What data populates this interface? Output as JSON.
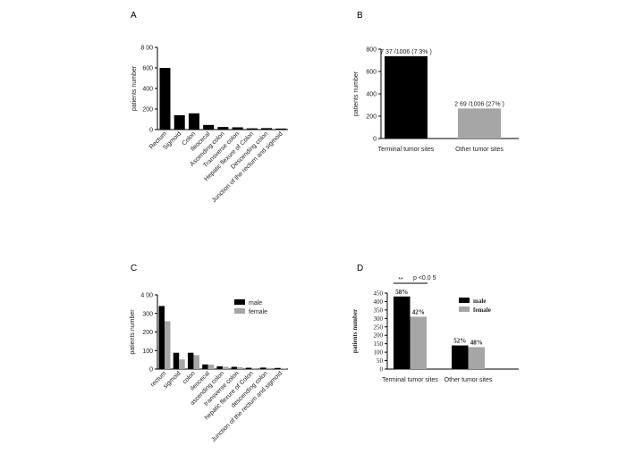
{
  "chart_data": [
    {
      "panel": "A",
      "type": "bar",
      "ylabel": "patients number",
      "ylim": [
        0,
        800
      ],
      "yticks": [
        0,
        200,
        400,
        600,
        800
      ],
      "ytick_labels": [
        "0",
        "200",
        "400",
        "600",
        "8 00"
      ],
      "categories": [
        "Rectum",
        "Sigmoid",
        "Colon",
        "Ileocecal",
        "Ascending colon",
        "Transverse colon",
        "Hepatic flexure of Colon",
        "Descending colon",
        "Junction of the rectum and sigmoid"
      ],
      "values": [
        600,
        140,
        158,
        45,
        25,
        22,
        12,
        14,
        10
      ],
      "colors": [
        "#000000"
      ]
    },
    {
      "panel": "B",
      "type": "bar",
      "ylabel": "patients number",
      "ylim": [
        0,
        800
      ],
      "yticks": [
        0,
        200,
        400,
        600,
        800
      ],
      "categories": [
        "Terminal tumor sites",
        "Other tumor sites"
      ],
      "values": [
        737,
        269
      ],
      "data_labels": [
        "7 37 /1006  (7 3% )",
        "2 69 /1006  (27% )"
      ],
      "colors": [
        "#000000",
        "#a6a6a6"
      ]
    },
    {
      "panel": "C",
      "type": "bar",
      "ylabel": "patients number",
      "ylim": [
        0,
        400
      ],
      "yticks": [
        0,
        100,
        200,
        300,
        400
      ],
      "ytick_labels": [
        "0",
        "100",
        "200",
        "300",
        "4 00"
      ],
      "categories": [
        "rectum",
        "sigmoid",
        "colon",
        "ileocecal",
        "ascending colon",
        "transverse colon",
        "hepatic flexure of Colon",
        "descending colon",
        "Junction of the rectum and sigmoid"
      ],
      "series": [
        {
          "name": "male",
          "values": [
            340,
            88,
            88,
            25,
            15,
            12,
            7,
            8,
            6
          ],
          "color": "#000000"
        },
        {
          "name": "female",
          "values": [
            258,
            52,
            75,
            24,
            12,
            10,
            5,
            6,
            4
          ],
          "color": "#a6a6a6"
        }
      ],
      "legend": "top-right"
    },
    {
      "panel": "D",
      "type": "bar",
      "ylabel": "patients number",
      "ylim": [
        0,
        450
      ],
      "yticks": [
        0,
        50,
        100,
        150,
        200,
        250,
        300,
        350,
        400,
        450
      ],
      "categories": [
        "Terminal tumor sites",
        "Other tumor sites"
      ],
      "series": [
        {
          "name": "male",
          "values": [
            430,
            140
          ],
          "labels": [
            "58%",
            "52%"
          ],
          "color": "#000000"
        },
        {
          "name": "female",
          "values": [
            310,
            130
          ],
          "labels": [
            "42%",
            "48%"
          ],
          "color": "#a6a6a6"
        }
      ],
      "legend": "top-right",
      "annotations": {
        "stars": "**",
        "pvalue": "p <0.0 5"
      }
    }
  ]
}
